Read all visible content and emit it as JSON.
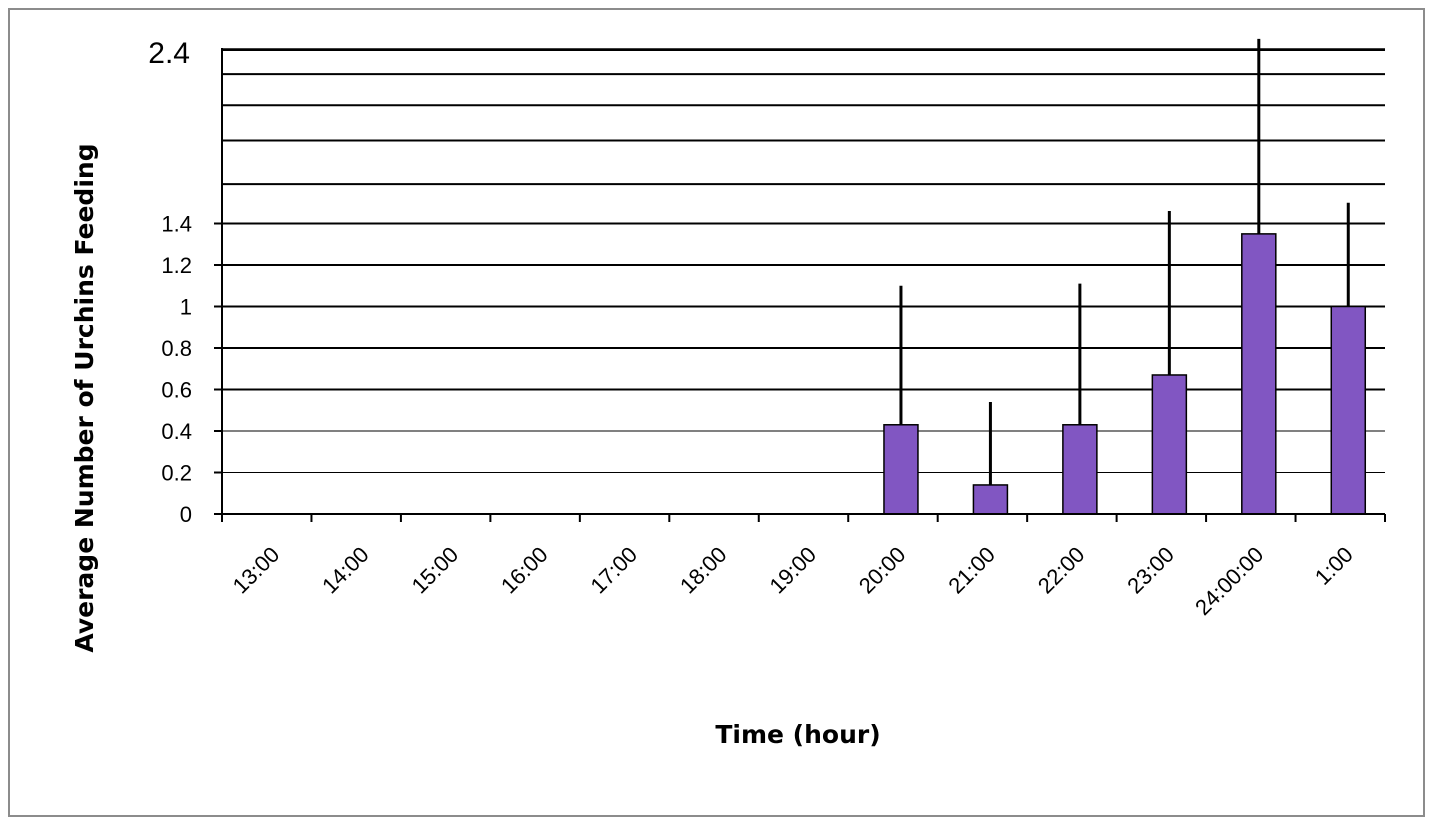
{
  "chart_data": {
    "type": "bar",
    "title": "",
    "xlabel": "Time (hour)",
    "ylabel": "Average Number of Urchins Feeding",
    "categories": [
      "13:00",
      "14:00",
      "15:00",
      "16:00",
      "17:00",
      "18:00",
      "19:00",
      "20:00",
      "21:00",
      "22:00",
      "23:00",
      "24:00:00",
      "1:00"
    ],
    "values": [
      0,
      0,
      0,
      0,
      0,
      0,
      0,
      0.43,
      0.14,
      0.43,
      0.67,
      1.35,
      1.0
    ],
    "error_upper": [
      0,
      0,
      0,
      0,
      0,
      0,
      0,
      1.1,
      0.54,
      1.11,
      1.46,
      2.29,
      1.5
    ],
    "y_tick_labels": [
      "0",
      "0.2",
      "0.4",
      "0.6",
      "0.8",
      "1",
      "1.2",
      "1.4"
    ],
    "y_tick_values": [
      0,
      0.2,
      0.4,
      0.6,
      0.8,
      1.0,
      1.2,
      1.4
    ],
    "y_top_label": "2.4",
    "extra_gridlines": [
      1.59,
      1.8,
      1.97,
      2.12,
      2.24
    ],
    "ylim": [
      0,
      2.24
    ],
    "bar_color": "#8156c2",
    "legend": "none",
    "grid": true
  }
}
